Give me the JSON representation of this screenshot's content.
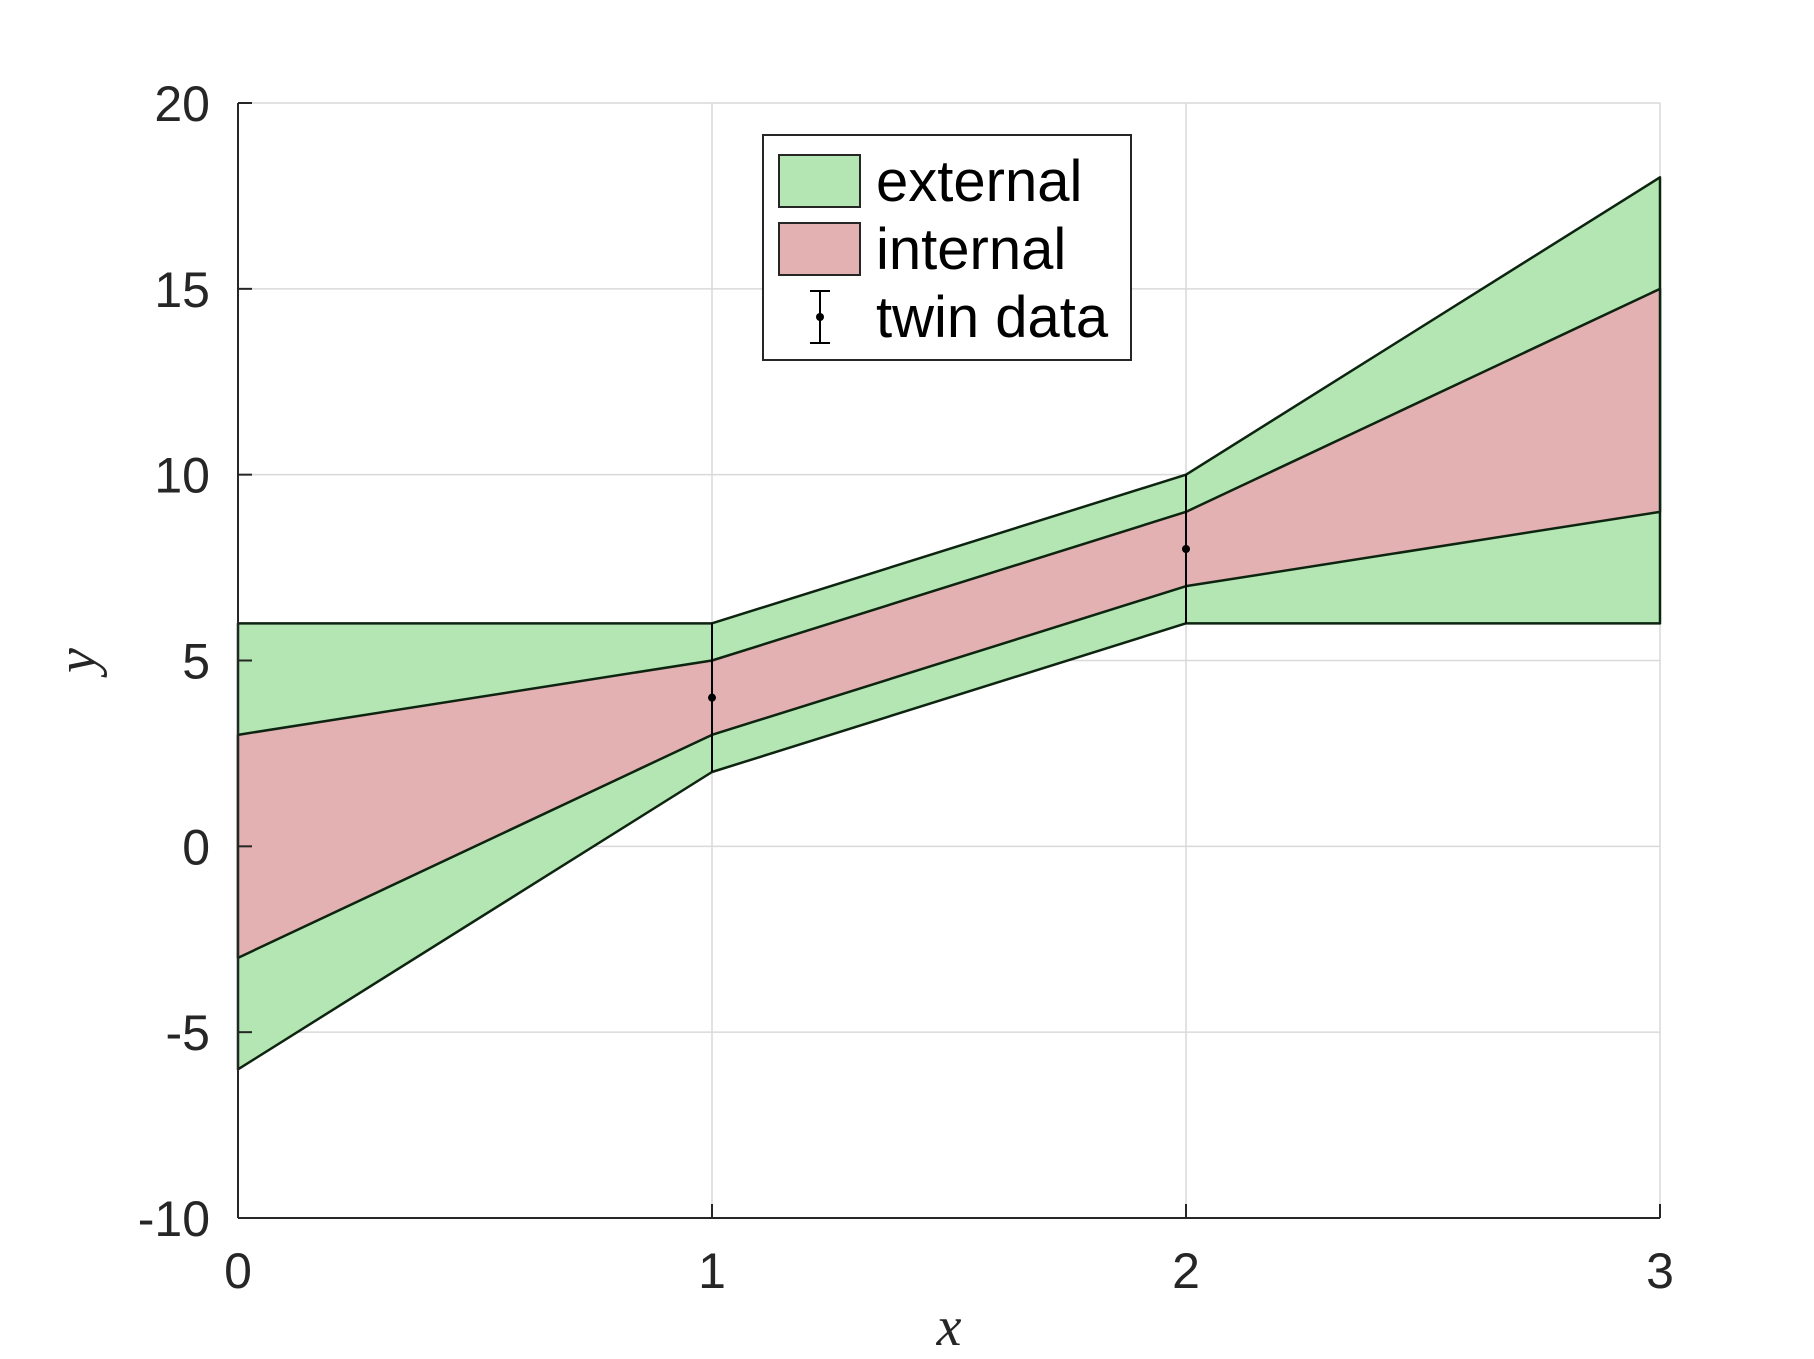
{
  "chart_data": {
    "type": "area",
    "title": "",
    "xlabel": "x",
    "ylabel": "y",
    "xlim": [
      0,
      3
    ],
    "ylim": [
      -10,
      20
    ],
    "xticks": [
      0,
      1,
      2,
      3
    ],
    "yticks": [
      -10,
      -5,
      0,
      5,
      10,
      15,
      20
    ],
    "xtick_labels": [
      "0",
      "1",
      "2",
      "3"
    ],
    "ytick_labels": [
      "-10",
      "-5",
      "0",
      "5",
      "10",
      "15",
      "20"
    ],
    "grid": true,
    "legend_position": "top-center",
    "bands": [
      {
        "name": "external",
        "color": "#b3e6b3",
        "x": [
          0,
          1,
          2,
          3
        ],
        "lower": [
          -6,
          2,
          6,
          6
        ],
        "upper": [
          6,
          6,
          10,
          18
        ]
      },
      {
        "name": "internal",
        "color": "#e3b1b1",
        "x": [
          0,
          1,
          2,
          3
        ],
        "lower": [
          -3,
          3,
          7,
          9
        ],
        "upper": [
          3,
          5,
          9,
          15
        ]
      }
    ],
    "errorbars": {
      "name": "twin data",
      "color": "#000000",
      "x": [
        1,
        2
      ],
      "y": [
        4,
        8
      ],
      "lower": [
        2,
        6
      ],
      "upper": [
        6,
        10
      ]
    }
  }
}
